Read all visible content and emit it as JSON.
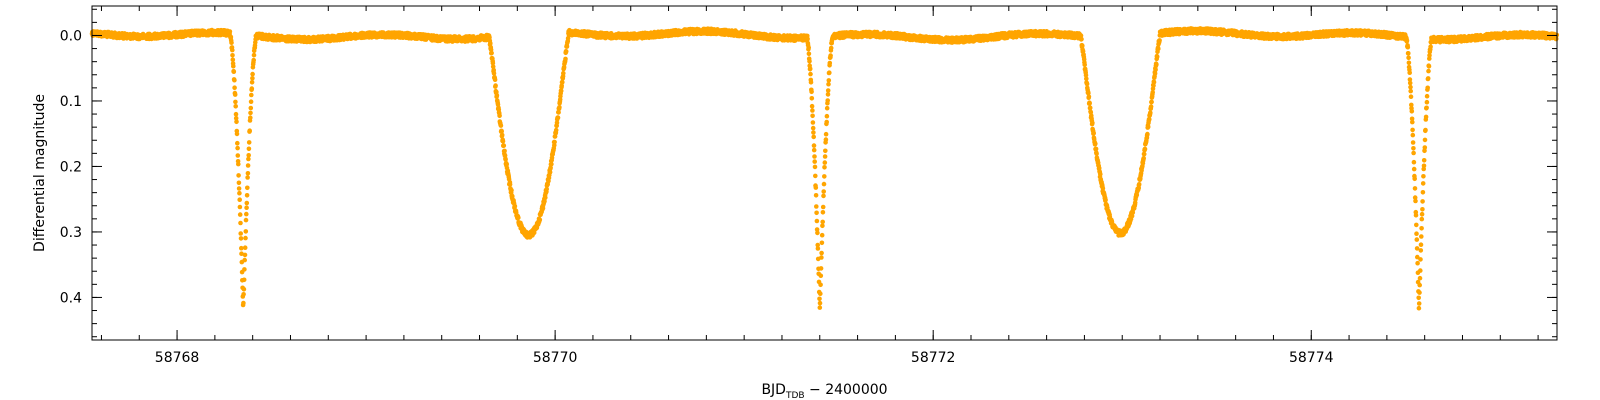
{
  "chart_data": {
    "type": "scatter",
    "title": "",
    "xlabel_main": "BJD",
    "xlabel_sub": "TDB",
    "xlabel_rest": " − 2400000",
    "ylabel": "Differential magnitude",
    "xlim": [
      58767.55,
      58775.3
    ],
    "ylim": [
      -0.045,
      0.465
    ],
    "y_inverted": true,
    "xticks": [
      58768,
      58770,
      58772,
      58774
    ],
    "xtick_labels": [
      "58768",
      "58770",
      "58772",
      "58774"
    ],
    "yticks": [
      0.0,
      0.1,
      0.2,
      0.3,
      0.4
    ],
    "ytick_labels": [
      "0.0",
      "0.1",
      "0.2",
      "0.3",
      "0.4"
    ],
    "x_minor_step": 0.2,
    "y_minor_step": 0.02,
    "grid": false,
    "marker_color": "#FFA500",
    "series": [
      {
        "name": "",
        "eclipses": [
          {
            "type": "primary",
            "t0": 58768.35,
            "depth": 0.418
          },
          {
            "type": "secondary",
            "t0": 58769.86,
            "depth": 0.305
          },
          {
            "type": "primary",
            "t0": 58771.4,
            "depth": 0.418
          },
          {
            "type": "secondary",
            "t0": 58772.99,
            "depth": 0.302
          },
          {
            "type": "primary",
            "t0": 58774.57,
            "depth": 0.418
          }
        ],
        "baseline_mag": 0.0,
        "primary_half_width_days": 0.07,
        "secondary_half_width_days": 0.21,
        "cadence_days": 0.0014
      }
    ]
  }
}
